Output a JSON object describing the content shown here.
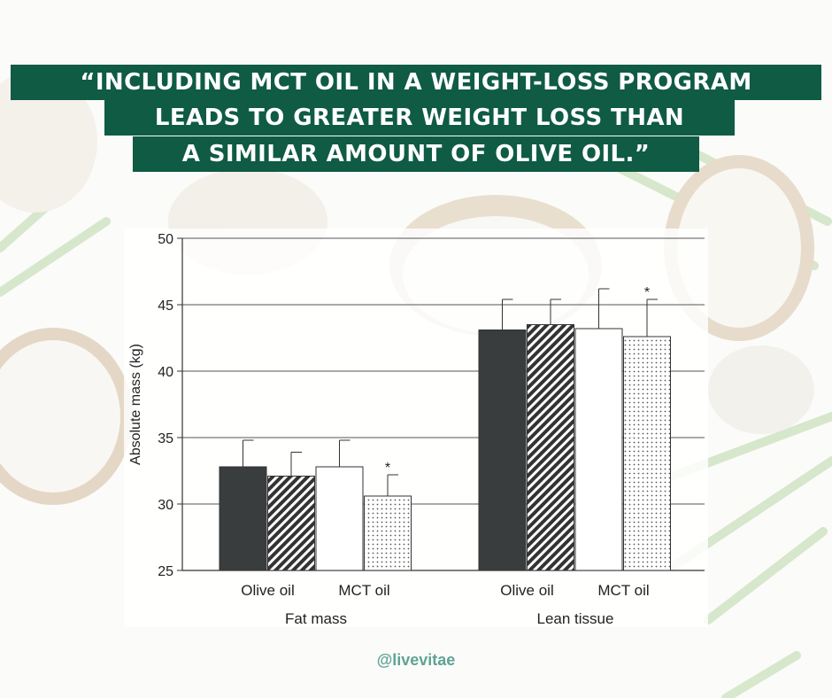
{
  "headline": {
    "line1": "“INCLUDING  MCT OIL IN A WEIGHT-LOSS PROGRAM",
    "line2": "LEADS TO GREATER WEIGHT LOSS THAN",
    "line3": "A SIMILAR AMOUNT OF OLIVE OIL.”"
  },
  "colors": {
    "banner": "#0f5b43",
    "handle": "#5fa394",
    "bar_solid": "#3a3d3e"
  },
  "handle": "@livevitae",
  "chart_data": {
    "type": "bar",
    "ylabel": "Absolute mass (kg)",
    "ylim": [
      25,
      50
    ],
    "yticks": [
      25,
      30,
      35,
      40,
      45,
      50
    ],
    "grid": true,
    "groups": [
      {
        "label": "Fat mass",
        "categories": [
          "Olive oil",
          "MCT oil"
        ],
        "bars": [
          {
            "value": 32.8,
            "error": 2.0,
            "pattern": "solid",
            "significant": false
          },
          {
            "value": 32.1,
            "error": 1.8,
            "pattern": "diagonal",
            "significant": false
          },
          {
            "value": 32.8,
            "error": 2.0,
            "pattern": "white",
            "significant": false
          },
          {
            "value": 30.6,
            "error": 1.6,
            "pattern": "dotted",
            "significant": true
          }
        ]
      },
      {
        "label": "Lean tissue",
        "categories": [
          "Olive oil",
          "MCT oil"
        ],
        "bars": [
          {
            "value": 43.1,
            "error": 2.3,
            "pattern": "solid",
            "significant": false
          },
          {
            "value": 43.5,
            "error": 1.9,
            "pattern": "diagonal",
            "significant": false
          },
          {
            "value": 43.2,
            "error": 3.0,
            "pattern": "white",
            "significant": false
          },
          {
            "value": 42.6,
            "error": 2.8,
            "pattern": "dotted",
            "significant": true
          }
        ]
      }
    ],
    "significance_marker": "*"
  }
}
